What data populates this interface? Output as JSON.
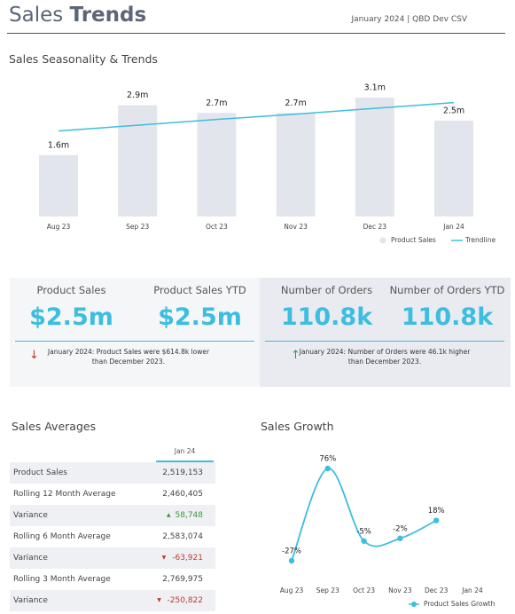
{
  "header": {
    "title_light": "Sales",
    "title_bold": "Trends",
    "subtitle": "January 2024 | QBD Dev CSV"
  },
  "chart_data": [
    {
      "type": "bar_trend",
      "title": "Sales Seasonality & Trends",
      "categories": [
        "Aug 23",
        "Sep 23",
        "Oct 23",
        "Nov 23",
        "Dec 23",
        "Jan 24"
      ],
      "series": [
        {
          "name": "Product Sales",
          "color": "#e3e5ed",
          "values": [
            1.6,
            2.9,
            2.7,
            2.7,
            3.1,
            2.5
          ],
          "value_labels": [
            "1.6m",
            "2.9m",
            "2.7m",
            "2.7m",
            "3.1m",
            "2.5m"
          ]
        },
        {
          "name": "Trendline",
          "color": "#3dbde0",
          "values": [
            2.23,
            2.38,
            2.53,
            2.67,
            2.82,
            2.97
          ]
        }
      ]
    },
    {
      "type": "line",
      "title": "Sales Growth",
      "categories": [
        "Aug 23",
        "Sep 23",
        "Oct 23",
        "Nov 23",
        "Dec 23",
        "Jan 24"
      ],
      "series": [
        {
          "name": "Product Sales Growth",
          "color": "#3dbde0",
          "values": [
            -27,
            76,
            -5,
            -2,
            18,
            null
          ],
          "value_labels": [
            "-27%",
            "76%",
            "-5%",
            "-2%",
            "18%",
            null
          ]
        }
      ]
    }
  ],
  "kpis": [
    {
      "label": "Product Sales",
      "value": "$2.5m"
    },
    {
      "label": "Product Sales YTD",
      "value": "$2.5m"
    },
    {
      "label": "Number of Orders",
      "value": "110.8k"
    },
    {
      "label": "Number of Orders YTD",
      "value": "110.8k"
    }
  ],
  "notes": [
    "January 2024: Product Sales were $614.8k lower than December 2023.",
    "January 2024: Number of Orders were 46.1k higher than December 2023."
  ],
  "averages": {
    "title": "Sales Averages",
    "column": "Jan 24",
    "rows": [
      {
        "label": "Product Sales",
        "value": "2,519,153"
      },
      {
        "label": "Rolling 12 Month Average",
        "value": "2,460,405"
      },
      {
        "label": "Variance",
        "delta": "58,748"
      },
      {
        "label": "Rolling 6 Month Average",
        "value": "2,583,074"
      },
      {
        "label": "Variance",
        "delta": "-63,921"
      },
      {
        "label": "Rolling 3 Month Average",
        "value": "2,769,975"
      },
      {
        "label": "Variance",
        "delta": "-250,822"
      }
    ]
  }
}
